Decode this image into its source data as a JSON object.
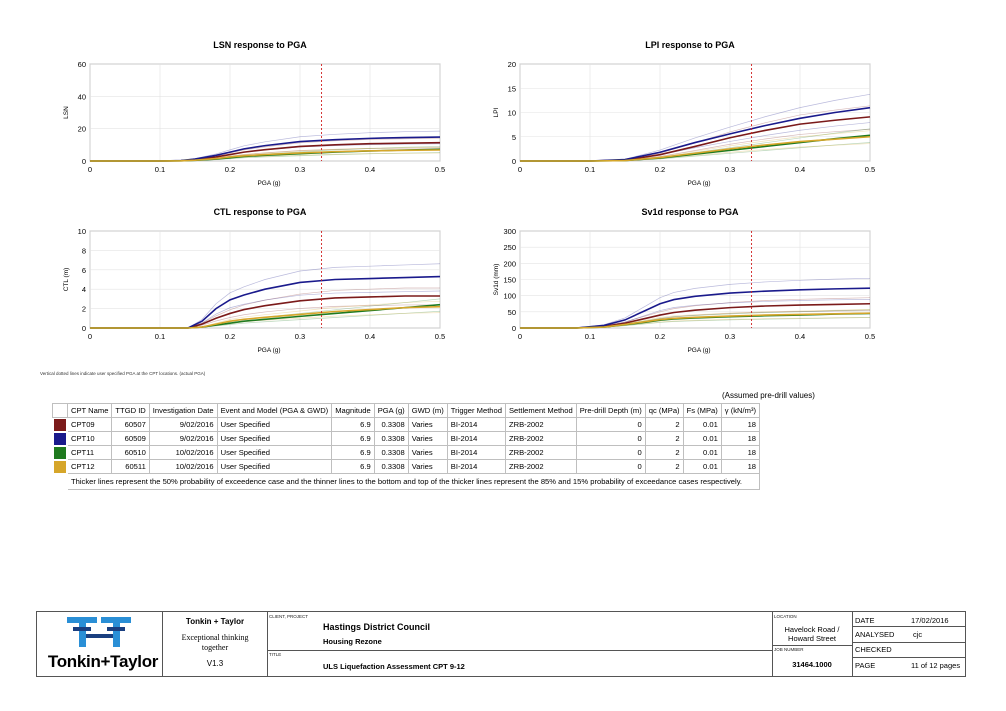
{
  "chart_data": [
    {
      "type": "line",
      "title": "LSN response to PGA",
      "xlabel": "PGA (g)",
      "ylabel": "LSN",
      "xlim": [
        0,
        0.5
      ],
      "ylim": [
        0,
        60
      ],
      "xticks": [
        "0",
        "0.1",
        "0.2",
        "0.3",
        "0.4",
        "0.5"
      ],
      "yticks": [
        "0",
        "20",
        "40",
        "60"
      ],
      "ytick_values": [
        0,
        20,
        40,
        60
      ],
      "pga_marker": 0.3308,
      "x": [
        0.0,
        0.1,
        0.13,
        0.15,
        0.18,
        0.2,
        0.22,
        0.25,
        0.3,
        0.35,
        0.4,
        0.45,
        0.5
      ],
      "series": [
        {
          "name": "CPT09",
          "color": "#7b1a1a",
          "values": [
            0,
            0,
            0.2,
            0.8,
            2.5,
            4,
            5.5,
            7,
            9,
            10,
            10.7,
            11,
            11.3
          ]
        },
        {
          "name": "CPT10",
          "color": "#1a1a8c",
          "values": [
            0,
            0,
            0.3,
            1.2,
            3.5,
            5.5,
            7.5,
            9.5,
            12,
            13.2,
            14,
            14.5,
            14.8
          ]
        },
        {
          "name": "CPT11",
          "color": "#1f7a1f",
          "values": [
            0,
            0,
            0.1,
            0.4,
            1.2,
            2,
            2.8,
            3.5,
            4.5,
            5.5,
            6.2,
            6.8,
            7.2
          ]
        },
        {
          "name": "CPT12",
          "color": "#d6a62a",
          "values": [
            0,
            0,
            0.1,
            0.5,
            1.5,
            2.5,
            3.2,
            4,
            5,
            5.8,
            6.3,
            6.6,
            6.8
          ]
        }
      ]
    },
    {
      "type": "line",
      "title": "LPI response to PGA",
      "xlabel": "PGA (g)",
      "ylabel": "LPI",
      "xlim": [
        0,
        0.5
      ],
      "ylim": [
        0,
        20
      ],
      "xticks": [
        "0",
        "0.1",
        "0.2",
        "0.3",
        "0.4",
        "0.5"
      ],
      "yticks": [
        "0",
        "5",
        "10",
        "15",
        "20"
      ],
      "ytick_values": [
        0,
        5,
        10,
        15,
        20
      ],
      "pga_marker": 0.3308,
      "x": [
        0.0,
        0.1,
        0.15,
        0.2,
        0.25,
        0.3,
        0.35,
        0.4,
        0.45,
        0.5
      ],
      "series": [
        {
          "name": "CPT09",
          "color": "#7b1a1a",
          "values": [
            0,
            0,
            0.2,
            1.3,
            3,
            4.8,
            6.3,
            7.6,
            8.4,
            9.1
          ]
        },
        {
          "name": "CPT10",
          "color": "#1a1a8c",
          "values": [
            0,
            0,
            0.3,
            1.8,
            3.8,
            5.6,
            7.3,
            8.8,
            10,
            11
          ]
        },
        {
          "name": "CPT11",
          "color": "#1f7a1f",
          "values": [
            0,
            0,
            0.1,
            0.6,
            1.4,
            2.2,
            3,
            3.8,
            4.6,
            5.3
          ]
        },
        {
          "name": "CPT12",
          "color": "#d6a62a",
          "values": [
            0,
            0,
            0.1,
            0.7,
            1.6,
            2.5,
            3.3,
            4,
            4.5,
            5
          ]
        }
      ]
    },
    {
      "type": "line",
      "title": "CTL response to PGA",
      "xlabel": "PGA (g)",
      "ylabel": "CTL (m)",
      "xlim": [
        0,
        0.5
      ],
      "ylim": [
        0,
        10
      ],
      "xticks": [
        "0",
        "0.1",
        "0.2",
        "0.3",
        "0.4",
        "0.5"
      ],
      "yticks": [
        "0",
        "2",
        "4",
        "6",
        "8",
        "10"
      ],
      "ytick_values": [
        0,
        2,
        4,
        6,
        8,
        10
      ],
      "pga_marker": 0.3308,
      "x": [
        0.0,
        0.1,
        0.14,
        0.16,
        0.18,
        0.2,
        0.22,
        0.25,
        0.3,
        0.35,
        0.4,
        0.45,
        0.5
      ],
      "series": [
        {
          "name": "CPT09",
          "color": "#7b1a1a",
          "values": [
            0,
            0,
            0,
            0.4,
            1,
            1.5,
            1.9,
            2.3,
            2.8,
            3.1,
            3.2,
            3.3,
            3.3
          ]
        },
        {
          "name": "CPT10",
          "color": "#1a1a8c",
          "values": [
            0,
            0,
            0,
            0.7,
            2,
            2.9,
            3.4,
            4,
            4.7,
            5,
            5.1,
            5.2,
            5.3
          ]
        },
        {
          "name": "CPT11",
          "color": "#1f7a1f",
          "values": [
            0,
            0,
            0,
            0.1,
            0.3,
            0.5,
            0.7,
            0.9,
            1.2,
            1.5,
            1.8,
            2.1,
            2.4
          ]
        },
        {
          "name": "CPT12",
          "color": "#d6a62a",
          "values": [
            0,
            0,
            0,
            0.1,
            0.4,
            0.7,
            0.9,
            1.1,
            1.4,
            1.7,
            1.9,
            2.1,
            2.2
          ]
        }
      ]
    },
    {
      "type": "line",
      "title": "Sv1d response to PGA",
      "xlabel": "PGA (g)",
      "ylabel": "Sv1d (mm)",
      "xlim": [
        0,
        0.5
      ],
      "ylim": [
        0,
        300
      ],
      "xticks": [
        "0",
        "0.1",
        "0.2",
        "0.3",
        "0.4",
        "0.5"
      ],
      "yticks": [
        "0",
        "50",
        "100",
        "150",
        "200",
        "250",
        "300"
      ],
      "ytick_values": [
        0,
        50,
        100,
        150,
        200,
        250,
        300
      ],
      "pga_marker": 0.3308,
      "x": [
        0.0,
        0.08,
        0.12,
        0.15,
        0.18,
        0.2,
        0.22,
        0.25,
        0.3,
        0.35,
        0.4,
        0.45,
        0.5
      ],
      "series": [
        {
          "name": "CPT09",
          "color": "#7b1a1a",
          "values": [
            0,
            0,
            5,
            15,
            30,
            40,
            48,
            55,
            63,
            68,
            71,
            73,
            75
          ]
        },
        {
          "name": "CPT10",
          "color": "#1a1a8c",
          "values": [
            0,
            0,
            8,
            25,
            55,
            75,
            88,
            98,
            108,
            114,
            118,
            121,
            123
          ]
        },
        {
          "name": "CPT11",
          "color": "#1f7a1f",
          "values": [
            0,
            0,
            3,
            10,
            18,
            24,
            28,
            31,
            35,
            38,
            40,
            43,
            45
          ]
        },
        {
          "name": "CPT12",
          "color": "#d6a62a",
          "values": [
            0,
            0,
            3,
            11,
            20,
            26,
            30,
            33,
            37,
            40,
            42,
            44,
            46
          ]
        }
      ]
    }
  ],
  "footnote": "Vertical dotted lines indicate user specified PGA at the CPT locations. (actual PGA)",
  "assumed_label": "(Assumed pre-drill values)",
  "table": {
    "headers": [
      "CPT Name",
      "TTGD ID",
      "Investigation Date",
      "Event and Model (PGA & GWD)",
      "Magnitude",
      "PGA (g)",
      "GWD (m)",
      "Trigger Method",
      "Settlement Method",
      "Pre-drill Depth (m)",
      "qc (MPa)",
      "Fs (MPa)",
      "γ (kN/m³)"
    ],
    "rows": [
      {
        "color": "#7b1a1a",
        "cells": [
          "CPT09",
          "60507",
          "9/02/2016",
          "User Specified",
          "6.9",
          "0.3308",
          "Varies",
          "BI-2014",
          "ZRB-2002",
          "0",
          "2",
          "0.01",
          "18"
        ]
      },
      {
        "color": "#1a1a8c",
        "cells": [
          "CPT10",
          "60509",
          "9/02/2016",
          "User Specified",
          "6.9",
          "0.3308",
          "Varies",
          "BI-2014",
          "ZRB-2002",
          "0",
          "2",
          "0.01",
          "18"
        ]
      },
      {
        "color": "#1f7a1f",
        "cells": [
          "CPT11",
          "60510",
          "10/02/2016",
          "User Specified",
          "6.9",
          "0.3308",
          "Varies",
          "BI-2014",
          "ZRB-2002",
          "0",
          "2",
          "0.01",
          "18"
        ]
      },
      {
        "color": "#d6a62a",
        "cells": [
          "CPT12",
          "60511",
          "10/02/2016",
          "User Specified",
          "6.9",
          "0.3308",
          "Varies",
          "BI-2014",
          "ZRB-2002",
          "0",
          "2",
          "0.01",
          "18"
        ]
      }
    ],
    "note": "Thicker lines represent the 50% probability of exceedence case and the thinner lines to the bottom and top of the thicker lines represent the 85% and 15% probability of exceedance cases respectively."
  },
  "title_block": {
    "logo_text": "Tonkin+Taylor",
    "company": "Tonkin + Taylor",
    "tagline_1": "Exceptional thinking",
    "tagline_2": "together",
    "version": "V1.3",
    "client_label": "CLIENT, PROJECT",
    "client": "Hastings District Council",
    "project": "Housing Rezone",
    "title_label": "TITLE",
    "title": "ULS Liquefaction Assessment CPT 9-12",
    "location_label": "LOCATION",
    "location_1": "Havelock Road /",
    "location_2": "Howard Street",
    "job_label": "JOB NUMBER",
    "job_number": "31464.1000",
    "date_label": "DATE",
    "date": "17/02/2016",
    "analysed_label": "ANALYSED",
    "analysed": "cjc",
    "checked_label": "CHECKED",
    "checked": "",
    "page_label": "PAGE",
    "page": "11 of 12 pages"
  }
}
